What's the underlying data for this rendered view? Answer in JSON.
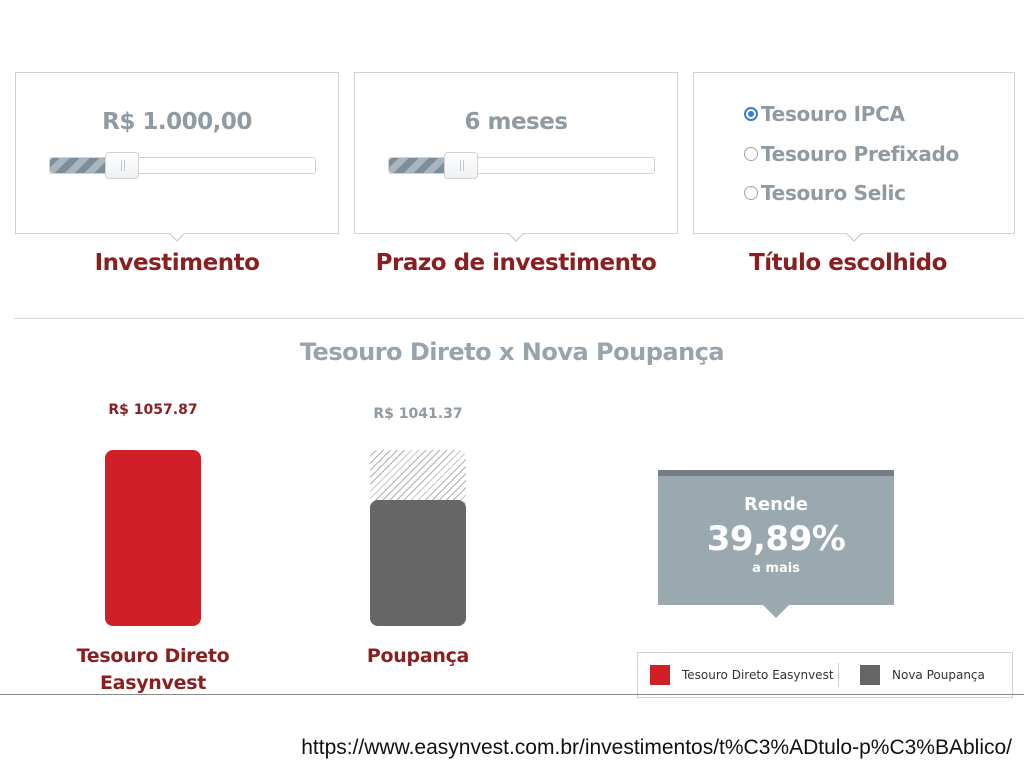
{
  "controls": {
    "investimento": {
      "value": "R$ 1.000,00",
      "label": "Investimento",
      "slider_level": 0.27
    },
    "prazo": {
      "value": "6 meses",
      "label": "Prazo de investimento",
      "slider_level": 0.27
    },
    "titulo": {
      "label": "Título escolhido",
      "options": [
        {
          "label": "Tesouro IPCA",
          "selected": true
        },
        {
          "label": "Tesouro Prefixado",
          "selected": false
        },
        {
          "label": "Tesouro Selic",
          "selected": false
        }
      ]
    }
  },
  "comparison": {
    "title": "Tesouro Direto x Nova Poupança",
    "callout": {
      "line1": "Rende",
      "line2": "39,89%",
      "line3": "a mais"
    },
    "legend": [
      "Tesouro Direto Easynvest",
      "Nova Poupança"
    ]
  },
  "chart_data": {
    "type": "bar",
    "title": "Tesouro Direto x Nova Poupança",
    "categories": [
      "Tesouro Direto Easynvest",
      "Poupança"
    ],
    "category_labels": [
      [
        "Tesouro Direto",
        "Easynvest"
      ],
      [
        "Poupança"
      ]
    ],
    "values": [
      1057.87,
      1041.37
    ],
    "value_labels": [
      "R$ 1057.87",
      "R$ 1041.37"
    ],
    "colors": [
      "#d01f26",
      "#666666"
    ],
    "value_label_colors": [
      "#8b1f1f",
      "#8f9aa3"
    ],
    "ylim": [
      1000,
      1057.87
    ]
  },
  "colors": {
    "accent_red": "#d01f26",
    "label_dark_red": "#8b1f1f",
    "muted_gray": "#8f9aa3",
    "bar_gray": "#666666",
    "radio_blue": "#3a7bd5",
    "callout_bg": "#9aa8b0"
  },
  "footer": {
    "url": "https://www.easynvest.com.br/investimentos/t%C3%ADtulo-p%C3%BAblico/"
  }
}
